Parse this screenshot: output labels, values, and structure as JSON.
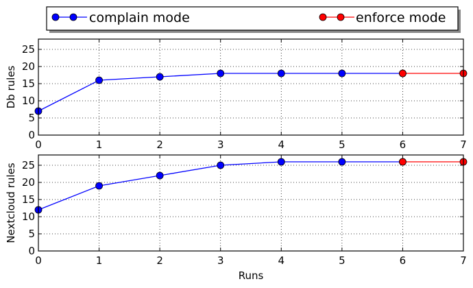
{
  "legend": {
    "placement": "top",
    "entries": [
      {
        "label": "complain mode",
        "color": "#0000ff"
      },
      {
        "label": "enforce mode",
        "color": "#ff0000"
      }
    ]
  },
  "chart_data": [
    {
      "type": "line",
      "title": "",
      "xlabel": "",
      "ylabel": "Db rules",
      "xlim": [
        0,
        7
      ],
      "ylim": [
        0,
        28
      ],
      "xticks": [
        "0",
        "1",
        "2",
        "3",
        "4",
        "5",
        "6",
        "7"
      ],
      "yticks": [
        "0",
        "5",
        "10",
        "15",
        "20",
        "25"
      ],
      "grid": true,
      "series": [
        {
          "name": "complain mode",
          "color": "#0000ff",
          "x": [
            0,
            1,
            2,
            3,
            4,
            5,
            6
          ],
          "y": [
            7,
            16,
            17,
            18,
            18,
            18,
            18
          ]
        },
        {
          "name": "enforce mode",
          "color": "#ff0000",
          "x": [
            6,
            7
          ],
          "y": [
            18,
            18
          ]
        }
      ]
    },
    {
      "type": "line",
      "title": "",
      "xlabel": "Runs",
      "ylabel": "Nextcloud rules",
      "xlim": [
        0,
        7
      ],
      "ylim": [
        0,
        28
      ],
      "xticks": [
        "0",
        "1",
        "2",
        "3",
        "4",
        "5",
        "6",
        "7"
      ],
      "yticks": [
        "0",
        "5",
        "10",
        "15",
        "20",
        "25"
      ],
      "grid": true,
      "series": [
        {
          "name": "complain mode",
          "color": "#0000ff",
          "x": [
            0,
            1,
            2,
            3,
            4,
            5,
            6
          ],
          "y": [
            12,
            19,
            22,
            25,
            26,
            26,
            26
          ]
        },
        {
          "name": "enforce mode",
          "color": "#ff0000",
          "x": [
            6,
            7
          ],
          "y": [
            26,
            26
          ]
        }
      ]
    }
  ]
}
